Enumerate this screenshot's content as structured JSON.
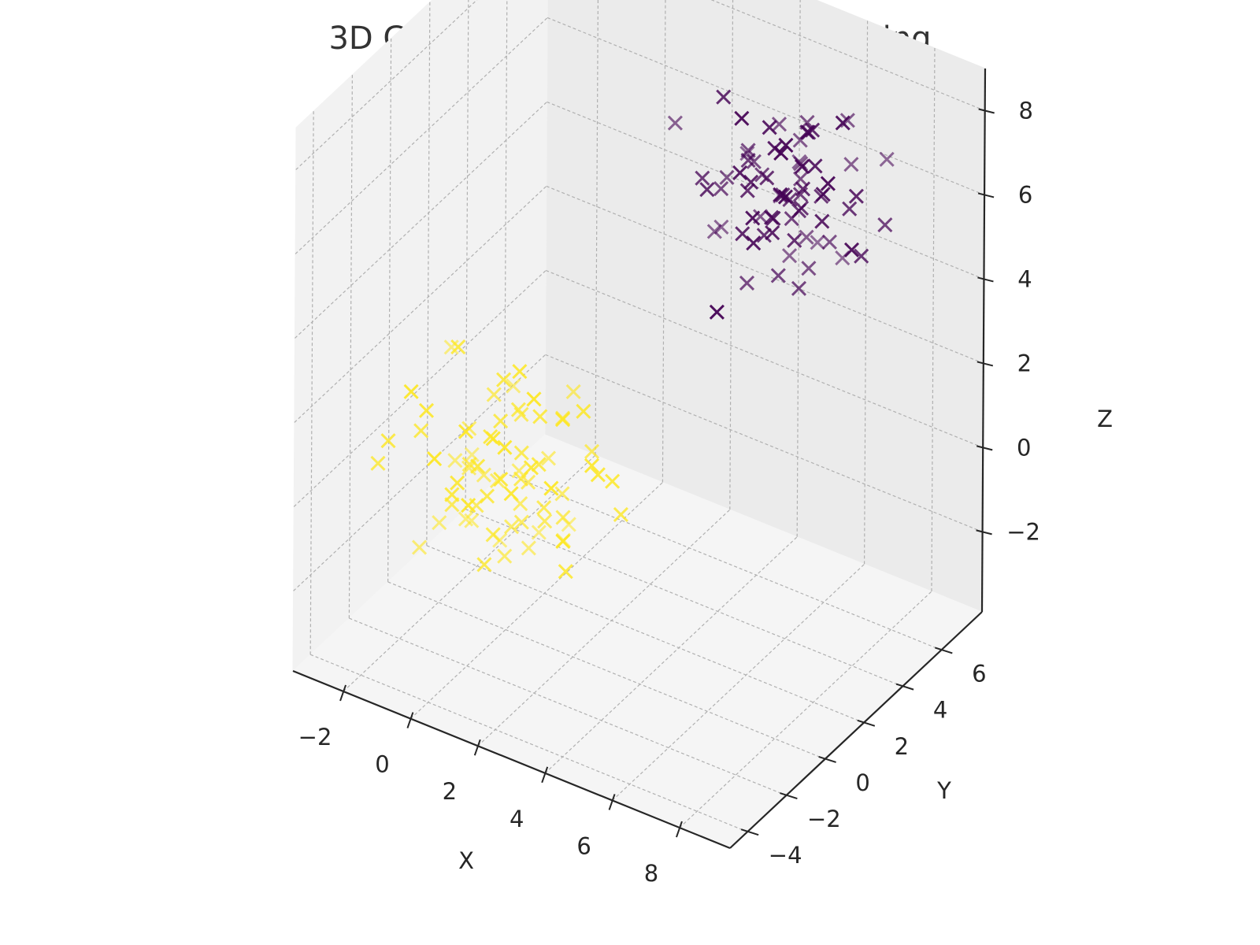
{
  "chart_data": {
    "type": "scatter",
    "title": "3D Gaussian Mixture Model Clustering",
    "xlabel": "X",
    "ylabel": "Y",
    "zlabel": "Z",
    "xlim": [
      -3.5,
      9.5
    ],
    "ylim": [
      -4.9,
      8.1
    ],
    "zlim": [
      -3.9,
      9.0
    ],
    "xticks": [
      -2,
      0,
      2,
      4,
      6,
      8
    ],
    "yticks": [
      -4,
      -2,
      0,
      2,
      4,
      6
    ],
    "zticks": [
      -2,
      0,
      2,
      4,
      6,
      8
    ],
    "xtick_labels": [
      "−2",
      "0",
      "2",
      "4",
      "6",
      "8"
    ],
    "ytick_labels": [
      "−4",
      "−2",
      "0",
      "2",
      "4",
      "6"
    ],
    "ztick_labels": [
      "−2",
      "0",
      "2",
      "4",
      "6",
      "8"
    ],
    "grid": true,
    "marker": "x",
    "series": [
      {
        "color": "#fde725",
        "points": [
          [
            -0.4,
            -1.1,
            0.6
          ],
          [
            0.4,
            -0.8,
            0.9
          ],
          [
            1.0,
            -1.5,
            0.3
          ],
          [
            0.0,
            -0.3,
            -0.2
          ],
          [
            -0.6,
            0.2,
            0.4
          ],
          [
            1.3,
            -0.6,
            0.7
          ],
          [
            0.7,
            -1.9,
            -0.6
          ],
          [
            -1.1,
            -0.9,
            -0.9
          ],
          [
            0.2,
            0.4,
            1.1
          ],
          [
            1.6,
            0.1,
            -0.2
          ],
          [
            -0.2,
            -1.6,
            1.5
          ],
          [
            0.9,
            0.6,
            0.2
          ],
          [
            -0.8,
            -0.4,
            -1.4
          ],
          [
            0.5,
            -1.2,
            -1.1
          ],
          [
            1.9,
            -1.0,
            0.5
          ],
          [
            -1.5,
            0.5,
            0.1
          ],
          [
            0.1,
            1.1,
            -0.5
          ],
          [
            -0.3,
            -2.3,
            0.2
          ],
          [
            1.1,
            -0.2,
            1.6
          ],
          [
            -1.8,
            -1.3,
            0.8
          ],
          [
            0.6,
            0.9,
            -1.2
          ],
          [
            2.3,
            0.4,
            0.9
          ],
          [
            -0.9,
            0.9,
            1.0
          ],
          [
            0.3,
            -0.6,
            -1.8
          ],
          [
            1.4,
            -1.8,
            1.1
          ],
          [
            -0.5,
            -2.6,
            -0.4
          ],
          [
            2.1,
            -0.7,
            -0.8
          ],
          [
            -2.2,
            0.1,
            -0.6
          ],
          [
            0.8,
            1.5,
            0.7
          ],
          [
            -1.3,
            -1.9,
            1.7
          ],
          [
            1.7,
            1.0,
            1.4
          ],
          [
            -0.1,
            0.0,
            2.0
          ],
          [
            0.0,
            -1.0,
            -0.3
          ],
          [
            0.5,
            -0.1,
            0.5
          ],
          [
            -0.7,
            -0.7,
            0.1
          ],
          [
            1.2,
            -1.3,
            -0.4
          ],
          [
            0.3,
            0.2,
            -0.9
          ],
          [
            -1.0,
            -0.2,
            -0.3
          ],
          [
            0.9,
            -0.4,
            -1.5
          ],
          [
            -0.4,
            -1.4,
            -0.8
          ],
          [
            2.6,
            -1.3,
            0.0
          ],
          [
            -2.5,
            -0.6,
            1.2
          ],
          [
            1.5,
            1.8,
            -0.3
          ],
          [
            0.2,
            -2.9,
            0.9
          ],
          [
            -1.6,
            1.3,
            -1.1
          ],
          [
            3.0,
            0.7,
            -0.5
          ],
          [
            -2.9,
            -1.6,
            -0.2
          ],
          [
            0.4,
            2.2,
            0.3
          ],
          [
            2.4,
            -2.2,
            0.4
          ],
          [
            -0.3,
            0.8,
            -1.9
          ],
          [
            1.8,
            0.3,
            2.2
          ],
          [
            -1.2,
            -2.4,
            -1.3
          ],
          [
            0.7,
            -0.9,
            2.5
          ],
          [
            -2.0,
            0.6,
            1.9
          ],
          [
            1.0,
            1.2,
            -2.0
          ],
          [
            0.8,
            -2.1,
            1.8
          ],
          [
            -0.6,
            1.7,
            1.3
          ],
          [
            2.0,
            -0.4,
            -1.7
          ],
          [
            -1.4,
            -0.1,
            2.4
          ],
          [
            0.1,
            -0.5,
            1.3
          ],
          [
            0.6,
            -0.3,
            0.0
          ],
          [
            -0.2,
            -1.2,
            -0.5
          ],
          [
            1.1,
            -0.8,
            0.3
          ],
          [
            -0.5,
            0.4,
            -0.7
          ],
          [
            0.3,
            -1.7,
            0.6
          ],
          [
            -0.9,
            -1.1,
            0.3
          ],
          [
            1.6,
            -1.1,
            -0.6
          ],
          [
            0.4,
            0.7,
            1.4
          ],
          [
            -1.3,
            0.3,
            -1.5
          ],
          [
            2.2,
            0.9,
            0.1
          ],
          [
            3.2,
            -0.1,
            0.7
          ],
          [
            -3.0,
            -0.9,
            0.0
          ],
          [
            0.9,
            -2.7,
            -0.9
          ],
          [
            -0.8,
            2.0,
            0.2
          ],
          [
            1.4,
            0.5,
            -1.0
          ]
        ]
      },
      {
        "color": "#440154",
        "points": [
          [
            5.1,
            5.2,
            5.8
          ],
          [
            5.6,
            4.6,
            6.2
          ],
          [
            4.7,
            5.9,
            5.4
          ],
          [
            5.9,
            5.6,
            6.6
          ],
          [
            4.5,
            4.3,
            5.1
          ],
          [
            6.1,
            4.2,
            5.5
          ],
          [
            5.3,
            6.3,
            6.9
          ],
          [
            4.2,
            5.1,
            6.4
          ],
          [
            5.8,
            3.9,
            4.7
          ],
          [
            5.0,
            4.0,
            7.1
          ],
          [
            6.4,
            5.5,
            5.0
          ],
          [
            4.9,
            6.6,
            5.9
          ],
          [
            5.5,
            5.0,
            4.6
          ],
          [
            4.4,
            4.7,
            6.8
          ],
          [
            6.0,
            6.1,
            6.0
          ],
          [
            5.2,
            3.6,
            6.0
          ],
          [
            6.6,
            4.8,
            6.5
          ],
          [
            4.0,
            5.6,
            5.6
          ],
          [
            5.7,
            5.8,
            7.3
          ],
          [
            4.8,
            4.9,
            4.9
          ],
          [
            5.4,
            6.8,
            5.2
          ],
          [
            6.3,
            3.7,
            6.3
          ],
          [
            3.8,
            4.4,
            5.9
          ],
          [
            5.9,
            5.3,
            4.3
          ],
          [
            4.6,
            6.0,
            7.0
          ],
          [
            6.8,
            5.9,
            6.8
          ],
          [
            4.1,
            3.9,
            5.3
          ],
          [
            5.0,
            5.4,
            6.7
          ],
          [
            6.2,
            4.4,
            7.2
          ],
          [
            4.3,
            6.3,
            6.2
          ],
          [
            5.6,
            6.5,
            4.8
          ],
          [
            5.3,
            4.4,
            5.7
          ],
          [
            4.7,
            5.2,
            6.1
          ],
          [
            5.9,
            4.9,
            5.9
          ],
          [
            5.1,
            5.7,
            5.5
          ],
          [
            4.9,
            4.6,
            6.5
          ],
          [
            5.7,
            5.2,
            6.4
          ],
          [
            4.4,
            5.4,
            5.0
          ],
          [
            6.0,
            5.0,
            5.2
          ],
          [
            5.2,
            6.0,
            6.3
          ],
          [
            6.9,
            4.0,
            5.8
          ],
          [
            3.6,
            5.8,
            6.9
          ],
          [
            5.4,
            3.3,
            5.6
          ],
          [
            4.8,
            7.1,
            6.4
          ],
          [
            6.5,
            6.7,
            5.6
          ],
          [
            3.9,
            3.5,
            6.3
          ],
          [
            7.1,
            5.3,
            6.1
          ],
          [
            4.2,
            6.9,
            4.8
          ],
          [
            6.7,
            3.4,
            4.9
          ],
          [
            5.0,
            3.7,
            7.5
          ],
          [
            4.6,
            3.3,
            6.9
          ],
          [
            6.4,
            6.4,
            7.5
          ],
          [
            3.5,
            4.6,
            4.7
          ],
          [
            7.3,
            4.6,
            5.3
          ],
          [
            4.0,
            7.4,
            5.7
          ],
          [
            5.8,
            7.2,
            6.9
          ],
          [
            5.4,
            4.1,
            8.0
          ],
          [
            6.1,
            3.1,
            6.5
          ],
          [
            3.4,
            5.2,
            7.6
          ],
          [
            7.0,
            6.1,
            4.6
          ],
          [
            2.9,
            5.0,
            5.6
          ],
          [
            8.1,
            5.4,
            6.0
          ],
          [
            5.5,
            2.8,
            4.9
          ],
          [
            4.4,
            7.8,
            6.2
          ],
          [
            6.6,
            3.6,
            8.3
          ],
          [
            2.6,
            4.1,
            7.2
          ],
          [
            7.8,
            6.0,
            7.2
          ],
          [
            4.5,
            3.0,
            3.8
          ],
          [
            6.2,
            7.0,
            4.1
          ],
          [
            3.1,
            6.6,
            5.1
          ],
          [
            5.1,
            4.8,
            5.1
          ],
          [
            5.6,
            5.5,
            6.0
          ],
          [
            4.3,
            4.9,
            5.8
          ],
          [
            6.0,
            4.6,
            6.0
          ],
          [
            5.3,
            5.9,
            5.6
          ]
        ]
      }
    ]
  }
}
